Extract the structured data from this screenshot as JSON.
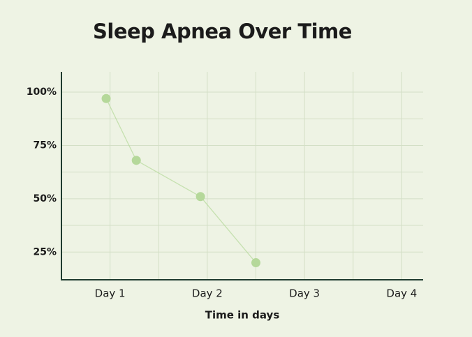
{
  "chart_data": {
    "type": "line",
    "title": "Sleep Apnea Over Time",
    "x_label": "Time in days",
    "x": [
      0.96,
      1.27,
      1.93,
      2.5
    ],
    "series": [
      {
        "name": "Sleep apnea",
        "color": "#b5d89a",
        "values": [
          97,
          68,
          51,
          20
        ]
      }
    ],
    "xlim": [
      0.5,
      4.22
    ],
    "xticks": [
      {
        "value": 1,
        "label": "Day 1"
      },
      {
        "value": 2,
        "label": "Day 2"
      },
      {
        "value": 3,
        "label": "Day 3"
      },
      {
        "value": 4,
        "label": "Day 4"
      }
    ],
    "x_minor_ticks": [
      1.5,
      2.5,
      3.5
    ],
    "ylim": [
      12,
      109.5
    ],
    "yticks": [
      {
        "value": 25,
        "label": "25%"
      },
      {
        "value": 50,
        "label": "50%"
      },
      {
        "value": 75,
        "label": "75%"
      },
      {
        "value": 100,
        "label": "100%"
      }
    ],
    "y_minor_ticks": [
      37.5,
      62.5,
      87.5
    ],
    "grid": true,
    "legend": false
  }
}
